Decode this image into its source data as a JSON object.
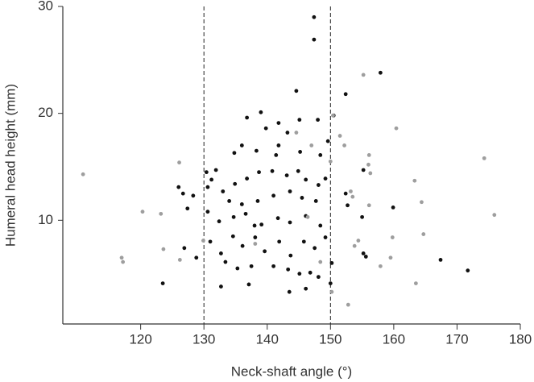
{
  "chart_data": {
    "type": "scatter",
    "x_label": "Neck-shaft angle (°)",
    "y_label": "Humeral head height (mm)",
    "xlim": [
      107.7,
      180
    ],
    "xticks": [
      120,
      130,
      140,
      150,
      160,
      170,
      180
    ],
    "ylim": [
      0.3,
      30
    ],
    "yticks": [
      10,
      20,
      30
    ],
    "vlines": [
      130,
      150
    ],
    "series": [
      {
        "color": "#111111",
        "x": [
          147.4,
          147.4,
          157.9,
          144.6,
          152.4,
          139.0,
          150.5,
          141.8,
          145.1,
          143.2,
          148.0,
          136.8,
          139.8,
          136.0,
          131.9,
          134.8,
          138.3,
          141.4,
          145.2,
          148.4,
          149.6,
          130.4,
          126.0,
          126.7,
          128.3,
          127.4,
          131.2,
          133.0,
          134.9,
          136.8,
          138.7,
          140.8,
          143.1,
          144.9,
          146.1,
          148.1,
          149.2,
          134.0,
          136.0,
          138.5,
          141.0,
          143.6,
          145.5,
          147.7,
          130.6,
          132.4,
          134.7,
          136.6,
          139.1,
          141.7,
          143.6,
          146.1,
          148.4,
          152.4,
          152.7,
          155.0,
          159.9,
          155.2,
          126.9,
          128.8,
          131.0,
          132.7,
          134.6,
          136.1,
          138.1,
          139.6,
          141.9,
          143.7,
          145.8,
          147.5,
          149.2,
          133.4,
          135.3,
          137.5,
          141.0,
          143.3,
          145.1,
          146.8,
          150.2,
          150.0,
          123.5,
          132.7,
          137.1,
          143.5,
          146.1,
          148.1,
          155.2,
          155.6,
          167.4,
          171.7,
          130.6,
          141.8,
          138.0
        ],
        "values": [
          29.0,
          26.9,
          23.8,
          22.1,
          21.8,
          20.1,
          19.8,
          19.1,
          19.4,
          18.2,
          19.4,
          19.6,
          18.6,
          17.0,
          14.7,
          16.3,
          16.5,
          16.1,
          16.4,
          16.1,
          17.4,
          14.5,
          13.1,
          12.5,
          12.3,
          11.1,
          13.8,
          12.7,
          13.4,
          13.9,
          14.5,
          14.6,
          14.2,
          14.6,
          13.8,
          13.3,
          13.9,
          11.8,
          11.5,
          11.8,
          12.3,
          12.7,
          12.1,
          11.8,
          10.8,
          9.9,
          10.3,
          10.6,
          9.6,
          10.2,
          9.8,
          10.4,
          9.5,
          12.5,
          11.4,
          10.3,
          11.2,
          14.7,
          7.4,
          6.5,
          8.0,
          6.9,
          8.5,
          7.6,
          8.4,
          7.1,
          8.0,
          6.7,
          8.0,
          7.4,
          8.4,
          6.1,
          5.5,
          5.7,
          5.7,
          5.4,
          5.0,
          5.1,
          6.0,
          4.1,
          4.1,
          3.8,
          4.0,
          3.3,
          3.6,
          4.7,
          6.9,
          6.6,
          6.3,
          5.3,
          13.1,
          17.0,
          9.5
        ]
      },
      {
        "color": "#9e9e9e",
        "x": [
          110.9,
          120.3,
          117.0,
          117.2,
          123.2,
          123.6,
          126.1,
          126.2,
          129.9,
          138.1,
          144.6,
          147.0,
          146.4,
          148.4,
          150.4,
          151.5,
          152.2,
          153.2,
          153.5,
          153.8,
          154.4,
          152.8,
          155.2,
          156.1,
          156.0,
          156.1,
          156.3,
          160.4,
          159.8,
          159.5,
          157.9,
          163.3,
          164.4,
          164.7,
          163.5,
          174.3,
          175.9,
          150.0,
          150.2
        ],
        "values": [
          14.3,
          10.8,
          6.5,
          6.1,
          10.6,
          7.3,
          15.4,
          6.3,
          8.1,
          7.8,
          18.2,
          17.0,
          10.3,
          6.1,
          19.8,
          17.9,
          17.0,
          12.7,
          12.2,
          7.6,
          8.1,
          2.1,
          23.6,
          16.1,
          15.2,
          11.4,
          14.4,
          18.6,
          8.4,
          6.5,
          5.7,
          13.7,
          11.7,
          8.7,
          4.1,
          15.8,
          10.5,
          15.5,
          3.3
        ]
      }
    ]
  }
}
